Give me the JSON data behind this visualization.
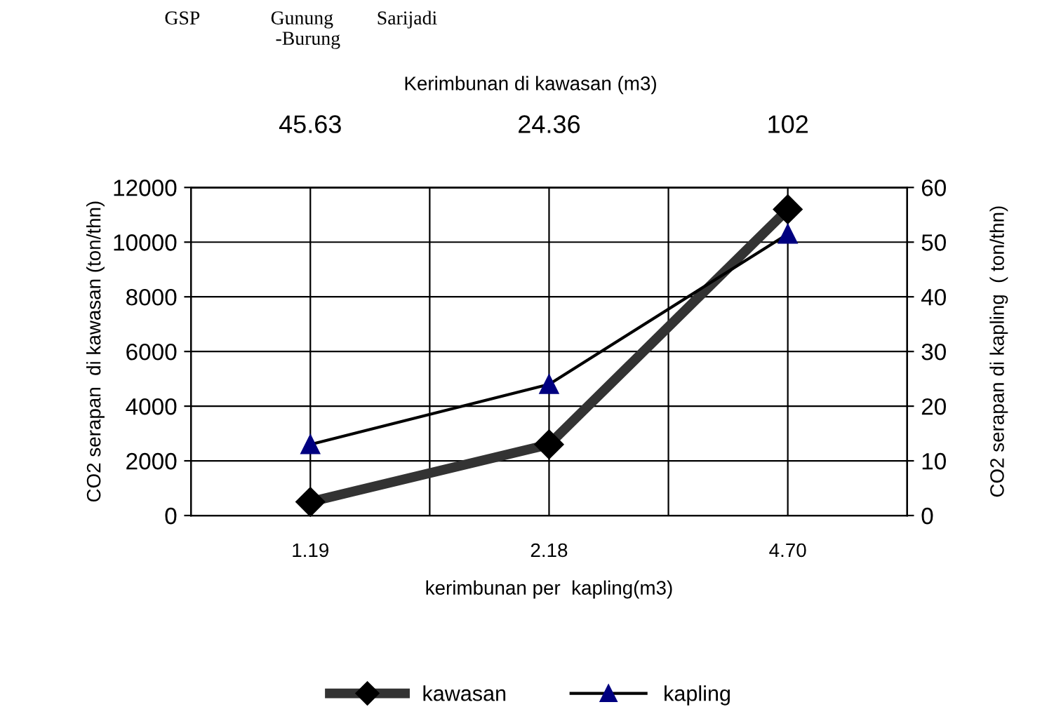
{
  "chart_data": {
    "type": "line",
    "xlabel": "kerimbunan per  kapling(m3)",
    "x2label": "Kerimbunan di kawasan (m3)",
    "ylabel": "CO2 serapan  di kawasan (ton/thn)",
    "y2label": "CO2 serapan di kapling  ( ton/thn)",
    "categories": [
      "1.19",
      "2.18",
      "4.70"
    ],
    "series": [
      {
        "name": "kawasan",
        "color": "#333333",
        "marker": "diamond",
        "values": [
          500,
          2600,
          11200
        ]
      },
      {
        "name": "kapling",
        "color": "#000080",
        "marker": "triangle",
        "axis": "y2",
        "values": [
          13,
          24,
          51.5
        ]
      }
    ],
    "ylim": [
      0,
      12000
    ],
    "yticks": [
      0,
      2000,
      4000,
      6000,
      8000,
      10000,
      12000
    ],
    "y2lim": [
      0,
      60
    ],
    "y2ticks": [
      0,
      10,
      20,
      30,
      40,
      50,
      60
    ],
    "grid": true,
    "legend": "bottom",
    "annotations": [
      "GSP",
      "Gunung\n -Burung",
      "Sarijadi",
      "45.63",
      "24.36",
      "102"
    ]
  }
}
